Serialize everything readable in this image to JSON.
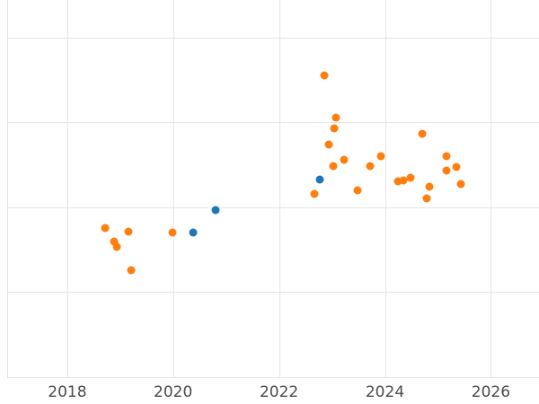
{
  "figure": {
    "background_color": "#ffffff",
    "grid_color": "#e5e5e5",
    "tick_label_color": "#4b4b4b"
  },
  "chart_data": {
    "type": "scatter",
    "title": "",
    "xlabel": "",
    "ylabel": "",
    "grid": true,
    "legend": "none",
    "x_ticks": [
      2018,
      2020,
      2022,
      2024,
      2026
    ],
    "x_tick_labels": [
      "2018",
      "2020",
      "2022",
      "2024",
      "2026"
    ],
    "x_range": [
      2016.73,
      2026.91
    ],
    "y_range": [
      -0.32,
      4.44
    ],
    "y_gridlines": [
      0,
      1,
      2,
      3,
      4
    ],
    "y_tick_labels": [],
    "series": [
      {
        "name": "orange-series",
        "color": "#ff7f0e",
        "marker": "circle",
        "points": [
          [
            2018.71,
            1.75
          ],
          [
            2018.88,
            1.6
          ],
          [
            2018.93,
            1.53
          ],
          [
            2019.15,
            1.71
          ],
          [
            2019.21,
            1.26
          ],
          [
            2019.99,
            1.7
          ],
          [
            2022.67,
            2.16
          ],
          [
            2022.86,
            3.55
          ],
          [
            2022.94,
            2.74
          ],
          [
            2023.03,
            2.48
          ],
          [
            2023.04,
            2.93
          ],
          [
            2023.08,
            3.06
          ],
          [
            2023.23,
            2.56
          ],
          [
            2023.48,
            2.2
          ],
          [
            2023.72,
            2.48
          ],
          [
            2023.93,
            2.6
          ],
          [
            2024.25,
            2.3
          ],
          [
            2024.35,
            2.31
          ],
          [
            2024.49,
            2.35
          ],
          [
            2024.71,
            2.86
          ],
          [
            2024.79,
            2.1
          ],
          [
            2024.84,
            2.24
          ],
          [
            2025.16,
            2.6
          ],
          [
            2025.16,
            2.43
          ],
          [
            2025.35,
            2.47
          ],
          [
            2025.44,
            2.27
          ]
        ]
      },
      {
        "name": "blue-series",
        "color": "#1f77b4",
        "marker": "circle",
        "points": [
          [
            2020.38,
            1.7
          ],
          [
            2020.8,
            1.97
          ],
          [
            2022.77,
            2.32
          ]
        ]
      }
    ]
  }
}
